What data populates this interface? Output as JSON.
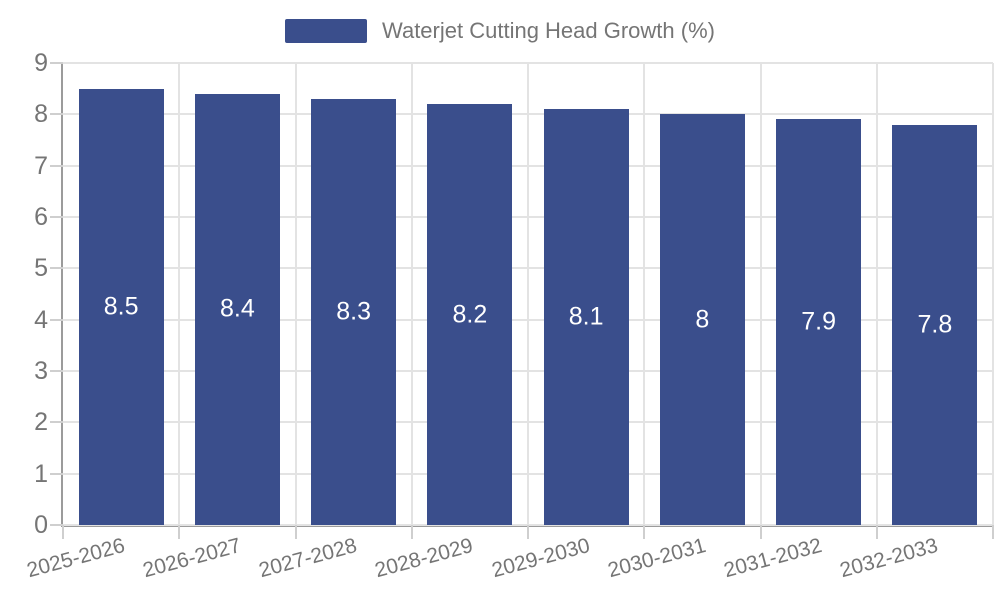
{
  "legend": {
    "label": "Waterjet Cutting Head Growth (%)"
  },
  "colors": {
    "bar": "#3A4E8C",
    "value_label": "#FFFFFF",
    "axis_text": "#757575",
    "grid": "#E3E3E3",
    "axis_line": "#9B9B9B",
    "tick": "#CFCFCF",
    "background": "#FFFFFF"
  },
  "chart_data": {
    "type": "bar",
    "title": "Waterjet Cutting Head Growth (%)",
    "categories": [
      "2025-2026",
      "2026-2027",
      "2027-2028",
      "2028-2029",
      "2029-2030",
      "2030-2031",
      "2031-2032",
      "2032-2033"
    ],
    "values": [
      8.5,
      8.4,
      8.3,
      8.2,
      8.1,
      8,
      7.9,
      7.8
    ],
    "xlabel": "",
    "ylabel": "",
    "ylim": [
      0,
      9
    ],
    "yticks": [
      0,
      1,
      2,
      3,
      4,
      5,
      6,
      7,
      8,
      9
    ],
    "grid": true,
    "legend_position": "top",
    "bar_label_position": "middle",
    "x_label_rotation_deg": -15
  }
}
